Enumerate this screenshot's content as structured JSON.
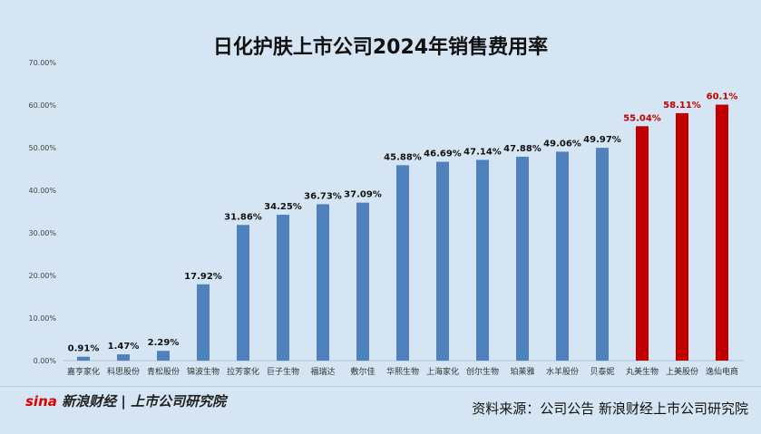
{
  "chart_data": {
    "type": "bar",
    "title": "日化护肤上市公司2024年销售费用率",
    "categories": [
      "嘉亨家化",
      "科思股份",
      "青松股份",
      "锦波生物",
      "拉芳家化",
      "巨子生物",
      "福瑞达",
      "敷尔佳",
      "华熙生物",
      "上海家化",
      "创尔生物",
      "珀莱雅",
      "水羊股份",
      "贝泰妮",
      "丸美生物",
      "上美股份",
      "逸仙电商"
    ],
    "values": [
      0.91,
      1.47,
      2.29,
      17.92,
      31.86,
      34.25,
      36.73,
      37.09,
      45.88,
      46.69,
      47.14,
      47.88,
      49.06,
      49.97,
      55.04,
      58.11,
      60.1
    ],
    "data_labels": [
      "0.91%",
      "1.47%",
      "2.29%",
      "17.92%",
      "31.86%",
      "34.25%",
      "36.73%",
      "37.09%",
      "45.88%",
      "46.69%",
      "47.14%",
      "47.88%",
      "49.06%",
      "49.97%",
      "55.04%",
      "58.11%",
      "60.1%"
    ],
    "highlighted": [
      false,
      false,
      false,
      false,
      false,
      false,
      false,
      false,
      false,
      false,
      false,
      false,
      false,
      false,
      true,
      true,
      true
    ],
    "yticks": [
      "0.00%",
      "10.00%",
      "20.00%",
      "30.00%",
      "40.00%",
      "50.00%",
      "60.00%",
      "70.00%"
    ],
    "ylim": [
      0,
      70
    ],
    "grid": false,
    "colors": {
      "normal": "#4f81bd",
      "highlight": "#c00000"
    }
  },
  "footer": {
    "logo_text": "新浪财经",
    "logo_sina": "sina",
    "institute": "上市公司研究院",
    "source": "资料来源：公司公告 新浪财经上市公司研究院"
  },
  "watermark": "sina 新浪财经 上市公司研究院"
}
